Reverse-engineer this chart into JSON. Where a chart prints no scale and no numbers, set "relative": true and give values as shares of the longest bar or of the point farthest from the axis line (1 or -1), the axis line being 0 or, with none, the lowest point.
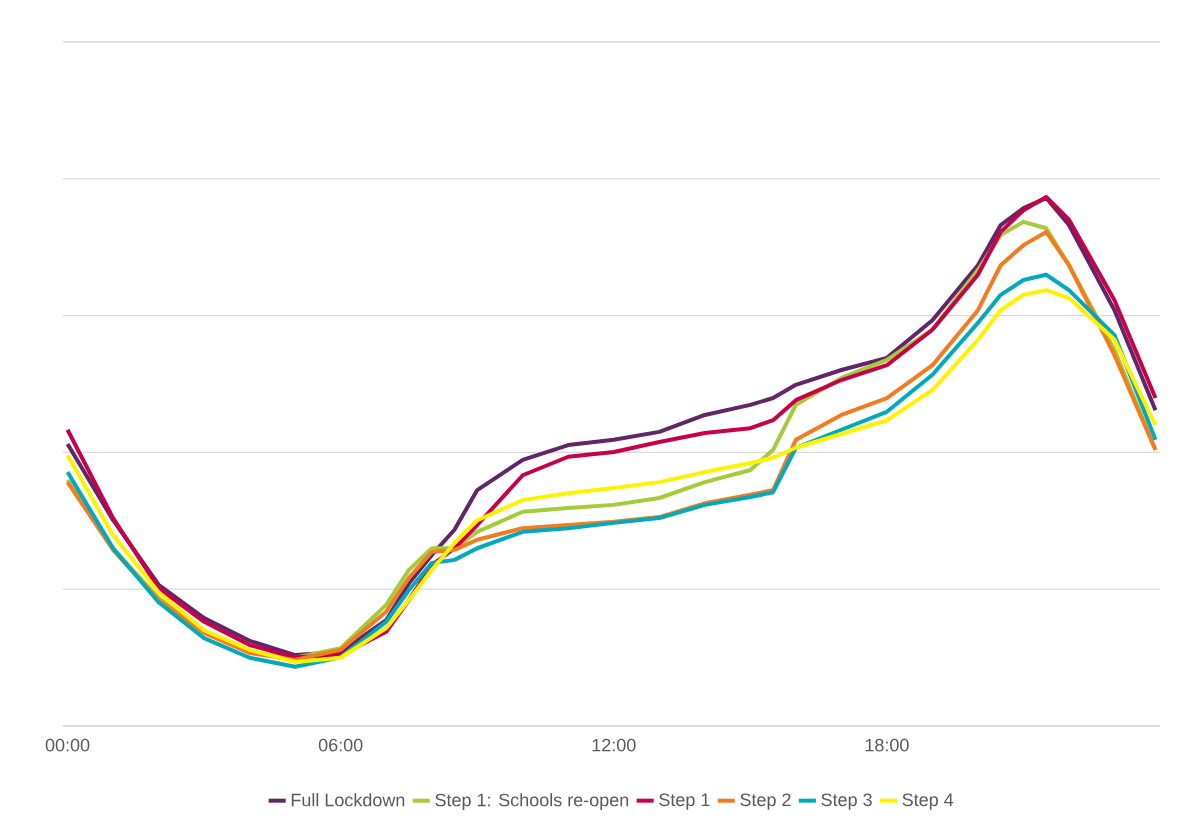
{
  "chart_data": {
    "type": "line",
    "relative": true,
    "grid": "y",
    "legend": "bottom",
    "x": [
      0,
      1,
      2,
      3,
      4,
      5,
      6,
      7,
      7.5,
      8,
      8.5,
      9,
      10,
      11,
      12,
      13,
      14,
      15,
      15.5,
      16,
      17,
      18,
      19,
      20,
      20.5,
      21,
      21.5,
      22,
      23,
      23.9
    ],
    "xlim": [
      -0.1,
      24
    ],
    "xticks": [
      {
        "value": 0,
        "label": "00:00"
      },
      {
        "value": 6,
        "label": "06:00"
      },
      {
        "value": 12,
        "label": "12:00"
      },
      {
        "value": 18,
        "label": "18:00"
      }
    ],
    "series": [
      {
        "name": "Full Lockdown",
        "color": "#622567",
        "values": [
          0.533,
          0.389,
          0.267,
          0.204,
          0.161,
          0.134,
          0.14,
          0.2,
          0.27,
          0.323,
          0.371,
          0.446,
          0.503,
          0.531,
          0.541,
          0.556,
          0.588,
          0.607,
          0.62,
          0.645,
          0.673,
          0.696,
          0.767,
          0.871,
          0.947,
          0.979,
          0.998,
          0.947,
          0.786,
          0.597
        ]
      },
      {
        "name": "Step 1: Schools re-open",
        "color": "#a5ca3a",
        "values": [
          0.465,
          0.336,
          0.242,
          0.178,
          0.14,
          0.129,
          0.147,
          0.229,
          0.295,
          0.336,
          0.336,
          0.367,
          0.405,
          0.412,
          0.418,
          0.431,
          0.461,
          0.484,
          0.522,
          0.607,
          0.658,
          0.692,
          0.749,
          0.862,
          0.928,
          0.953,
          0.941,
          0.871,
          0.711,
          0.522
        ]
      },
      {
        "name": "Step 1",
        "color": "#c8004b",
        "values": [
          0.56,
          0.393,
          0.261,
          0.197,
          0.153,
          0.13,
          0.134,
          0.178,
          0.238,
          0.304,
          0.336,
          0.38,
          0.474,
          0.509,
          0.518,
          0.537,
          0.554,
          0.563,
          0.578,
          0.616,
          0.654,
          0.682,
          0.749,
          0.853,
          0.934,
          0.975,
          1,
          0.957,
          0.805,
          0.62
        ]
      },
      {
        "name": "Step 2",
        "color": "#f47c20",
        "values": [
          0.461,
          0.333,
          0.238,
          0.176,
          0.138,
          0.125,
          0.144,
          0.216,
          0.28,
          0.329,
          0.333,
          0.352,
          0.374,
          0.38,
          0.386,
          0.395,
          0.421,
          0.437,
          0.446,
          0.541,
          0.588,
          0.62,
          0.682,
          0.786,
          0.871,
          0.909,
          0.934,
          0.871,
          0.701,
          0.522
        ]
      },
      {
        "name": "Step 3",
        "color": "#00aabb",
        "values": [
          0.48,
          0.336,
          0.234,
          0.166,
          0.129,
          0.112,
          0.13,
          0.197,
          0.257,
          0.308,
          0.314,
          0.336,
          0.367,
          0.374,
          0.384,
          0.393,
          0.418,
          0.433,
          0.442,
          0.526,
          0.56,
          0.594,
          0.664,
          0.762,
          0.815,
          0.843,
          0.853,
          0.824,
          0.739,
          0.541
        ]
      },
      {
        "name": "Step 4",
        "color": "#fff200",
        "values": [
          0.512,
          0.361,
          0.253,
          0.181,
          0.144,
          0.121,
          0.129,
          0.185,
          0.238,
          0.295,
          0.346,
          0.389,
          0.427,
          0.44,
          0.45,
          0.461,
          0.48,
          0.497,
          0.507,
          0.526,
          0.552,
          0.578,
          0.635,
          0.73,
          0.786,
          0.815,
          0.824,
          0.809,
          0.73,
          0.569
        ]
      }
    ]
  }
}
